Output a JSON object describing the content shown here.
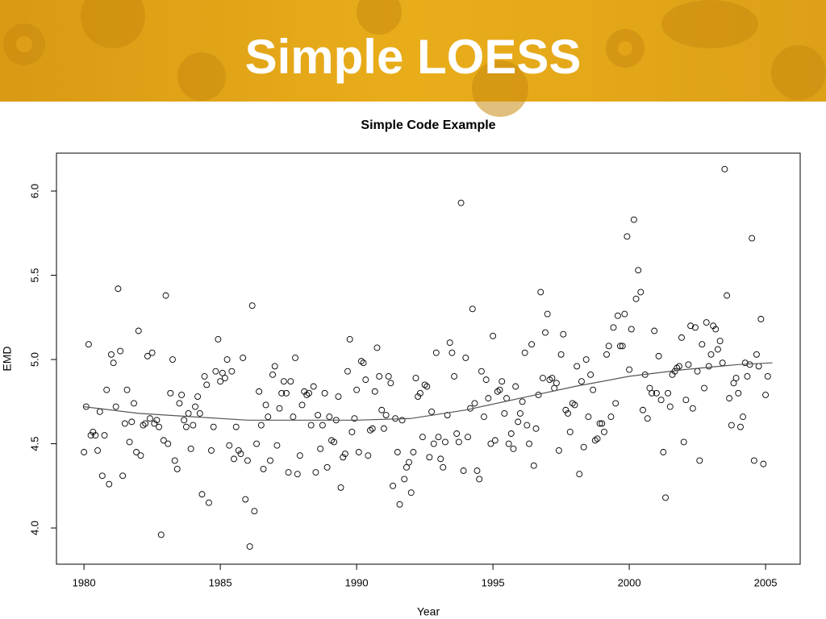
{
  "slide_title": "Simple LOESS",
  "chart_data": {
    "type": "scatter",
    "title": "Simple Code Example",
    "xlabel": "Year",
    "ylabel": "EMD",
    "xlim": [
      1978.99,
      2006.27
    ],
    "ylim": [
      3.785,
      6.225
    ],
    "xticks": [
      1980,
      1985,
      1990,
      1995,
      2000,
      2005
    ],
    "yticks": [
      {
        "value": 4,
        "label": "4.0"
      },
      4.5,
      {
        "value": 5,
        "label": "5.0"
      },
      5.5,
      {
        "value": 6,
        "label": "6.0"
      }
    ],
    "color": "#000000",
    "line_color": "#555555",
    "x": [
      1980.0,
      1980.08,
      1980.17,
      1980.25,
      1980.33,
      1980.42,
      1980.5,
      1980.58,
      1980.67,
      1980.75,
      1980.83,
      1980.92,
      1981.0,
      1981.08,
      1981.17,
      1981.25,
      1981.33,
      1981.42,
      1981.5,
      1981.58,
      1981.67,
      1981.75,
      1981.83,
      1981.92,
      1982.0,
      1982.08,
      1982.17,
      1982.25,
      1982.33,
      1982.42,
      1982.5,
      1982.58,
      1982.67,
      1982.75,
      1982.83,
      1982.92,
      1983.0,
      1983.08,
      1983.17,
      1983.25,
      1983.33,
      1983.42,
      1983.5,
      1983.58,
      1983.67,
      1983.75,
      1983.83,
      1983.92,
      1984.0,
      1984.08,
      1984.17,
      1984.25,
      1984.33,
      1984.42,
      1984.5,
      1984.58,
      1984.67,
      1984.75,
      1984.83,
      1984.92,
      1985.0,
      1985.08,
      1985.17,
      1985.25,
      1985.33,
      1985.42,
      1985.5,
      1985.58,
      1985.67,
      1985.75,
      1985.83,
      1985.92,
      1986.0,
      1986.08,
      1986.17,
      1986.25,
      1986.33,
      1986.42,
      1986.5,
      1986.58,
      1986.67,
      1986.75,
      1986.83,
      1986.92,
      1987.0,
      1987.08,
      1987.17,
      1987.25,
      1987.33,
      1987.42,
      1987.5,
      1987.58,
      1987.67,
      1987.75,
      1987.83,
      1987.92,
      1988.0,
      1988.08,
      1988.17,
      1988.25,
      1988.33,
      1988.42,
      1988.5,
      1988.58,
      1988.67,
      1988.75,
      1988.83,
      1988.92,
      1989.0,
      1989.08,
      1989.17,
      1989.25,
      1989.33,
      1989.42,
      1989.5,
      1989.58,
      1989.67,
      1989.75,
      1989.83,
      1989.92,
      1990.0,
      1990.08,
      1990.17,
      1990.25,
      1990.33,
      1990.42,
      1990.5,
      1990.58,
      1990.67,
      1990.75,
      1990.83,
      1990.92,
      1991.0,
      1991.08,
      1991.17,
      1991.25,
      1991.33,
      1991.42,
      1991.5,
      1991.58,
      1991.67,
      1991.75,
      1991.83,
      1991.92,
      1992.0,
      1992.08,
      1992.17,
      1992.25,
      1992.33,
      1992.42,
      1992.5,
      1992.58,
      1992.67,
      1992.75,
      1992.83,
      1992.92,
      1993.0,
      1993.08,
      1993.17,
      1993.25,
      1993.33,
      1993.42,
      1993.5,
      1993.58,
      1993.67,
      1993.75,
      1993.83,
      1993.92,
      1994.0,
      1994.08,
      1994.17,
      1994.25,
      1994.33,
      1994.42,
      1994.5,
      1994.58,
      1994.67,
      1994.75,
      1994.83,
      1994.92,
      1995.0,
      1995.08,
      1995.17,
      1995.25,
      1995.33,
      1995.42,
      1995.5,
      1995.58,
      1995.67,
      1995.75,
      1995.83,
      1995.92,
      1996.0,
      1996.08,
      1996.17,
      1996.25,
      1996.33,
      1996.42,
      1996.5,
      1996.58,
      1996.67,
      1996.75,
      1996.83,
      1996.92,
      1997.0,
      1997.08,
      1997.17,
      1997.25,
      1997.33,
      1997.42,
      1997.5,
      1997.58,
      1997.67,
      1997.75,
      1997.83,
      1997.92,
      1998.0,
      1998.08,
      1998.17,
      1998.25,
      1998.33,
      1998.42,
      1998.5,
      1998.58,
      1998.67,
      1998.75,
      1998.83,
      1998.92,
      1999.0,
      1999.08,
      1999.17,
      1999.25,
      1999.33,
      1999.42,
      1999.5,
      1999.58,
      1999.67,
      1999.75,
      1999.83,
      1999.92,
      2000.0,
      2000.08,
      2000.17,
      2000.25,
      2000.33,
      2000.42,
      2000.5,
      2000.58,
      2000.67,
      2000.75,
      2000.83,
      2000.92,
      2001.0,
      2001.08,
      2001.17,
      2001.25,
      2001.33,
      2001.42,
      2001.5,
      2001.58,
      2001.67,
      2001.75,
      2001.83,
      2001.92,
      2002.0,
      2002.08,
      2002.17,
      2002.25,
      2002.33,
      2002.42,
      2002.5,
      2002.58,
      2002.67,
      2002.75,
      2002.83,
      2002.92,
      2003.0,
      2003.08,
      2003.17,
      2003.25,
      2003.33,
      2003.42,
      2003.5,
      2003.58,
      2003.67,
      2003.75,
      2003.83,
      2003.92,
      2004.0,
      2004.08,
      2004.17,
      2004.25,
      2004.33,
      2004.42,
      2004.5,
      2004.58,
      2004.67,
      2004.75,
      2004.83,
      2004.92,
      2005.0,
      2005.08
    ],
    "values": [
      4.45,
      4.72,
      5.09,
      4.55,
      4.57,
      4.55,
      4.46,
      4.69,
      4.31,
      4.55,
      4.82,
      4.26,
      5.03,
      4.98,
      4.72,
      5.42,
      5.05,
      4.31,
      4.62,
      4.82,
      4.51,
      4.63,
      4.74,
      4.45,
      5.17,
      4.43,
      4.61,
      4.62,
      5.02,
      4.65,
      5.04,
      4.62,
      4.64,
      4.6,
      3.96,
      4.52,
      5.38,
      4.5,
      4.8,
      5.0,
      4.4,
      4.35,
      4.74,
      4.79,
      4.64,
      4.6,
      4.68,
      4.47,
      4.61,
      4.72,
      4.78,
      4.68,
      4.2,
      4.9,
      4.85,
      4.15,
      4.46,
      4.6,
      4.93,
      5.12,
      4.87,
      4.92,
      4.89,
      5.0,
      4.49,
      4.93,
      4.41,
      4.6,
      4.46,
      4.44,
      5.01,
      4.17,
      4.4,
      3.89,
      5.32,
      4.1,
      4.5,
      4.81,
      4.61,
      4.35,
      4.73,
      4.66,
      4.4,
      4.91,
      4.96,
      4.49,
      4.71,
      4.8,
      4.87,
      4.8,
      4.33,
      4.87,
      4.66,
      5.01,
      4.32,
      4.43,
      4.73,
      4.81,
      4.79,
      4.8,
      4.61,
      4.84,
      4.33,
      4.67,
      4.47,
      4.61,
      4.8,
      4.36,
      4.66,
      4.52,
      4.51,
      4.64,
      4.78,
      4.24,
      4.42,
      4.44,
      4.93,
      5.12,
      4.57,
      4.65,
      4.82,
      4.45,
      4.99,
      4.98,
      4.88,
      4.43,
      4.58,
      4.59,
      4.81,
      5.07,
      4.9,
      4.7,
      4.59,
      4.67,
      4.9,
      4.86,
      4.25,
      4.65,
      4.45,
      4.14,
      4.64,
      4.29,
      4.36,
      4.39,
      4.21,
      4.45,
      4.89,
      4.78,
      4.8,
      4.54,
      4.85,
      4.84,
      4.42,
      4.69,
      4.5,
      5.04,
      4.54,
      4.41,
      4.36,
      4.51,
      4.67,
      5.1,
      5.04,
      4.9,
      4.56,
      4.51,
      5.93,
      4.34,
      5.01,
      4.54,
      4.71,
      5.3,
      4.74,
      4.34,
      4.29,
      4.93,
      4.66,
      4.88,
      4.77,
      4.5,
      5.14,
      4.52,
      4.81,
      4.82,
      4.87,
      4.68,
      4.77,
      4.5,
      4.56,
      4.47,
      4.84,
      4.63,
      4.68,
      4.75,
      5.04,
      4.61,
      4.5,
      5.09,
      4.37,
      4.59,
      4.79,
      5.4,
      4.89,
      5.16,
      5.27,
      4.88,
      4.89,
      4.83,
      4.86,
      4.46,
      5.03,
      5.15,
      4.7,
      4.68,
      4.57,
      4.74,
      4.73,
      4.96,
      4.32,
      4.87,
      4.48,
      5.0,
      4.66,
      4.91,
      4.82,
      4.52,
      4.53,
      4.62,
      4.62,
      4.57,
      5.03,
      5.08,
      4.66,
      5.19,
      4.74,
      5.26,
      5.08,
      5.08,
      5.27,
      5.73,
      4.94,
      5.18,
      5.83,
      5.36,
      5.53,
      5.4,
      4.7,
      4.91,
      4.65,
      4.83,
      4.8,
      5.17,
      4.8,
      5.02,
      4.76,
      4.45,
      4.18,
      4.8,
      4.72,
      4.91,
      4.93,
      4.95,
      4.96,
      5.13,
      4.51,
      4.76,
      4.97,
      5.2,
      4.71,
      5.19,
      4.93,
      4.4,
      5.09,
      4.83,
      5.22,
      4.96,
      5.03,
      5.2,
      5.18,
      5.06,
      5.11,
      4.98,
      6.13,
      5.38,
      4.77,
      4.61,
      4.86,
      4.89,
      4.8,
      4.6,
      4.66,
      4.98,
      4.9,
      4.97,
      5.72,
      4.4,
      5.03,
      4.96,
      5.24,
      4.38,
      4.79,
      4.9
    ],
    "loess_x": [
      1980,
      1982,
      1984,
      1986,
      1988,
      1990,
      1992,
      1994,
      1996,
      1998,
      2000,
      2002,
      2004,
      2005.25
    ],
    "loess_y": [
      4.72,
      4.68,
      4.66,
      4.64,
      4.64,
      4.64,
      4.65,
      4.7,
      4.77,
      4.84,
      4.9,
      4.94,
      4.97,
      4.98
    ]
  }
}
